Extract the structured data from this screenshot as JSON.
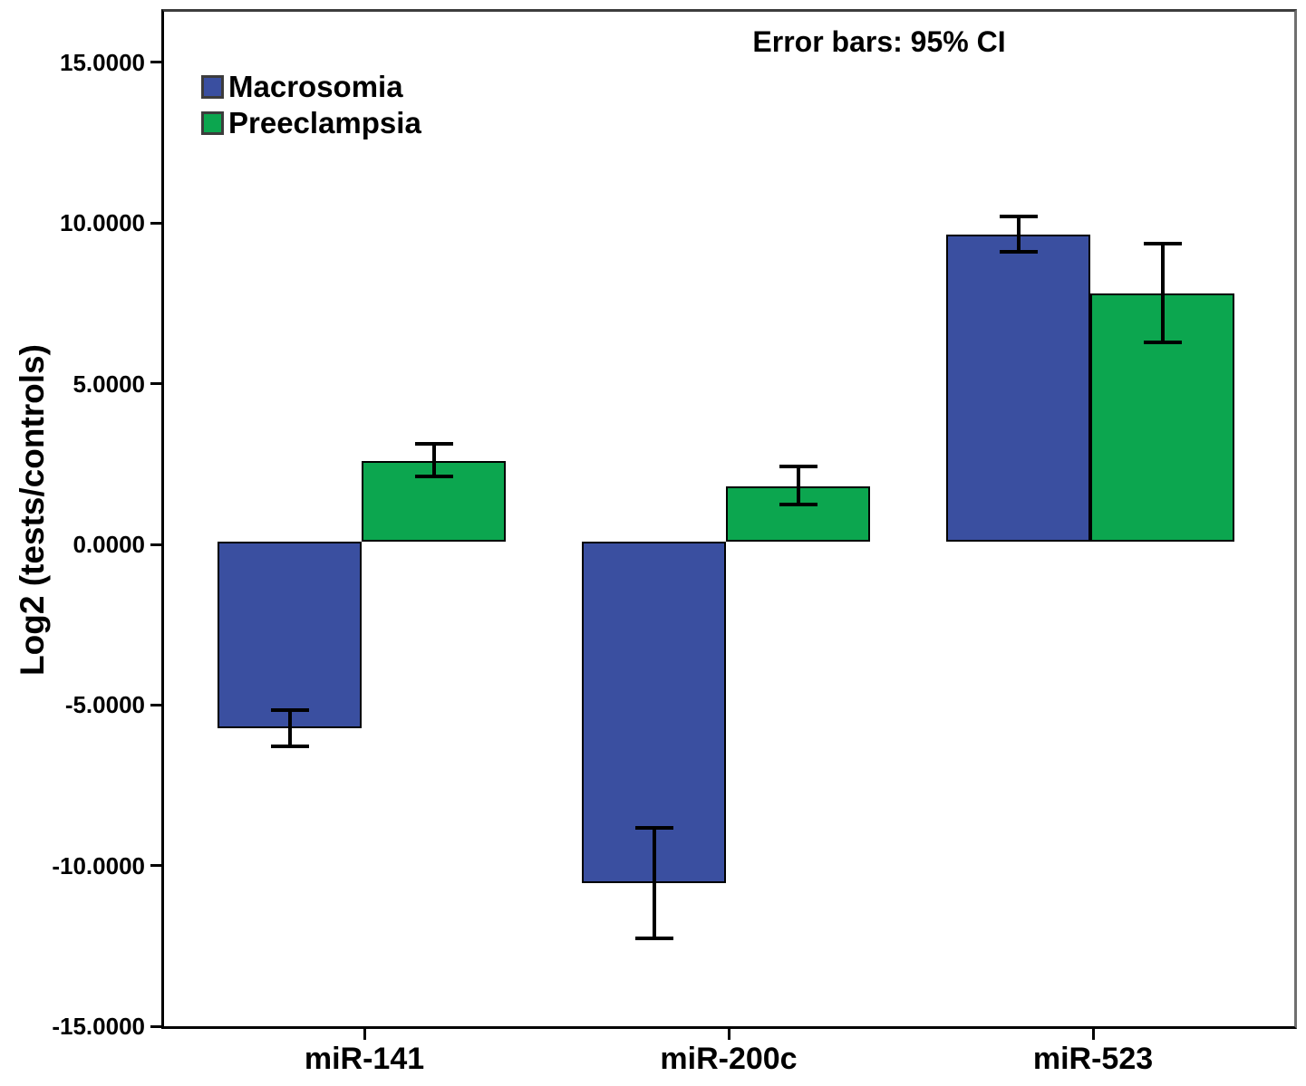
{
  "chart_data": {
    "type": "bar",
    "annotation": "Error bars: 95% CI",
    "ylabel": "Log2 (tests/controls)",
    "xlabel": "",
    "categories": [
      "miR-141",
      "miR-200c",
      "miR-523"
    ],
    "series": [
      {
        "name": "Macrosomia",
        "color": "#3a4fa0",
        "values": [
          -5.8,
          -10.62,
          9.56
        ],
        "ci_low": [
          -6.38,
          -12.34,
          9.03
        ],
        "ci_high": [
          -5.24,
          -8.9,
          10.11
        ]
      },
      {
        "name": "Preeclampsia",
        "color": "#0ca64f",
        "values": [
          2.51,
          1.73,
          7.72
        ],
        "ci_low": [
          2.03,
          1.15,
          6.21
        ],
        "ci_high": [
          3.04,
          2.34,
          9.27
        ]
      }
    ],
    "y_ticks": [
      {
        "value": 15,
        "label": "15.0000"
      },
      {
        "value": 10,
        "label": "10.0000"
      },
      {
        "value": 5,
        "label": "5.0000"
      },
      {
        "value": 0,
        "label": "0.0000"
      },
      {
        "value": -5,
        "label": "-5.0000"
      },
      {
        "value": -10,
        "label": "-10.0000"
      },
      {
        "value": -15,
        "label": "-15.0000"
      }
    ],
    "ylim": [
      -15,
      16.58
    ],
    "error_bars": "95% CI",
    "legend_position": "top-left-inside",
    "grid": false
  }
}
